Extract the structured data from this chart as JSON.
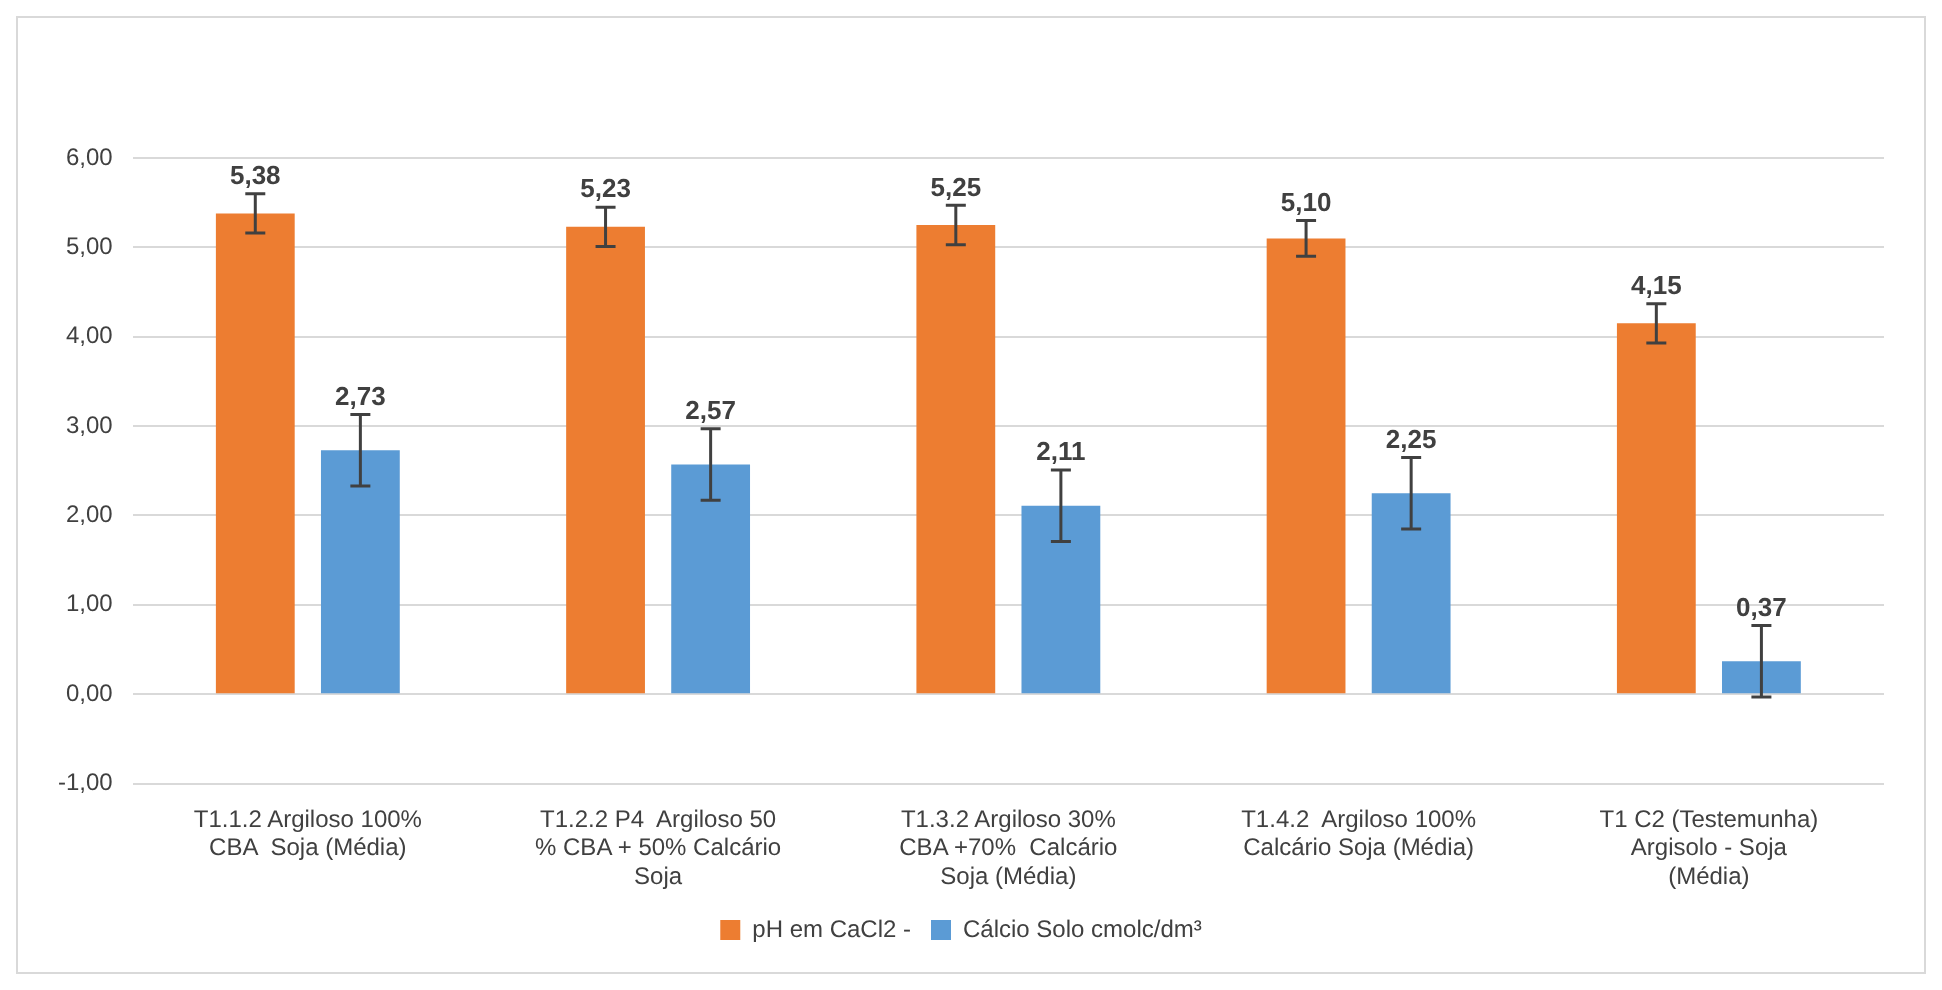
{
  "chart_data": {
    "type": "bar",
    "categories": [
      "T1.1.2 Argiloso 100% CBA  Soja (Média)",
      "T1.2.2 P4  Argiloso 50 % CBA + 50% Calcário Soja",
      "T1.3.2 Argiloso 30% CBA +70%  Calcário Soja (Média)",
      "T1.4.2  Argiloso 100% Calcário Soja (Média)",
      "T1 C2 (Testemunha) Argisolo - Soja (Média)"
    ],
    "series": [
      {
        "name": "pH em CaCl2 -",
        "color": "#ed7d31",
        "values": [
          5.38,
          5.23,
          5.25,
          5.1,
          4.15
        ],
        "errors": [
          0.22,
          0.22,
          0.22,
          0.2,
          0.22
        ],
        "value_labels": [
          "5,38",
          "5,23",
          "5,25",
          "5,10",
          "4,15"
        ]
      },
      {
        "name": "Cálcio Solo cmolc/dm³",
        "color": "#5b9bd5",
        "values": [
          2.73,
          2.57,
          2.11,
          2.25,
          0.37
        ],
        "errors": [
          0.4,
          0.4,
          0.4,
          0.4,
          0.4
        ],
        "value_labels": [
          "2,73",
          "2,57",
          "2,11",
          "2,25",
          "0,37"
        ]
      }
    ],
    "ylim": [
      -1,
      6
    ],
    "yticks": [
      {
        "value": -1,
        "label": "-1,00"
      },
      {
        "value": 0,
        "label": "0,00"
      },
      {
        "value": 1,
        "label": "1,00"
      },
      {
        "value": 2,
        "label": "2,00"
      },
      {
        "value": 3,
        "label": "3,00"
      },
      {
        "value": 4,
        "label": "4,00"
      },
      {
        "value": 5,
        "label": "5,00"
      },
      {
        "value": 6,
        "label": "6,00"
      }
    ],
    "grid": "y",
    "legend": "bottom"
  }
}
